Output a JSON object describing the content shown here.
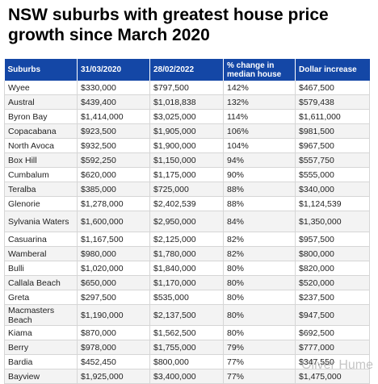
{
  "title": "NSW suburbs with greatest house price growth since March 2020",
  "headers": [
    "Suburbs",
    "31/03/2020",
    "28/02/2022",
    "% change in median house",
    "Dollar increase"
  ],
  "rows": [
    [
      "Wyee",
      "$330,000",
      "$797,500",
      "142%",
      "$467,500"
    ],
    [
      "Austral",
      "$439,400",
      "$1,018,838",
      "132%",
      "$579,438"
    ],
    [
      "Byron Bay",
      "$1,414,000",
      "$3,025,000",
      "114%",
      "$1,611,000"
    ],
    [
      "Copacabana",
      "$923,500",
      "$1,905,000",
      "106%",
      "$981,500"
    ],
    [
      "North Avoca",
      "$932,500",
      "$1,900,000",
      "104%",
      "$967,500"
    ],
    [
      "Box Hill",
      "$592,250",
      "$1,150,000",
      "94%",
      "$557,750"
    ],
    [
      "Cumbalum",
      "$620,000",
      "$1,175,000",
      "90%",
      "$555,000"
    ],
    [
      "Teralba",
      "$385,000",
      "$725,000",
      "88%",
      "$340,000"
    ],
    [
      "Glenorie",
      "$1,278,000",
      "$2,402,539",
      "88%",
      "$1,124,539"
    ],
    [
      "Sylvania Waters",
      "$1,600,000",
      "$2,950,000",
      "84%",
      "$1,350,000"
    ],
    [
      "Casuarina",
      "$1,167,500",
      "$2,125,000",
      "82%",
      "$957,500"
    ],
    [
      "Wamberal",
      "$980,000",
      "$1,780,000",
      "82%",
      "$800,000"
    ],
    [
      "Bulli",
      "$1,020,000",
      "$1,840,000",
      "80%",
      "$820,000"
    ],
    [
      "Callala Beach",
      "$650,000",
      "$1,170,000",
      "80%",
      "$520,000"
    ],
    [
      "Greta",
      "$297,500",
      "$535,000",
      "80%",
      "$237,500"
    ],
    [
      "Macmasters Beach",
      "$1,190,000",
      "$2,137,500",
      "80%",
      "$947,500"
    ],
    [
      "Kiama",
      "$870,000",
      "$1,562,500",
      "80%",
      "$692,500"
    ],
    [
      "Berry",
      "$978,000",
      "$1,755,000",
      "79%",
      "$777,000"
    ],
    [
      "Bardia",
      "$452,450",
      "$800,000",
      "77%",
      "$347,550"
    ],
    [
      "Bayview",
      "$1,925,000",
      "$3,400,000",
      "77%",
      "$1,475,000"
    ]
  ],
  "watermark": "Oliver Hume"
}
